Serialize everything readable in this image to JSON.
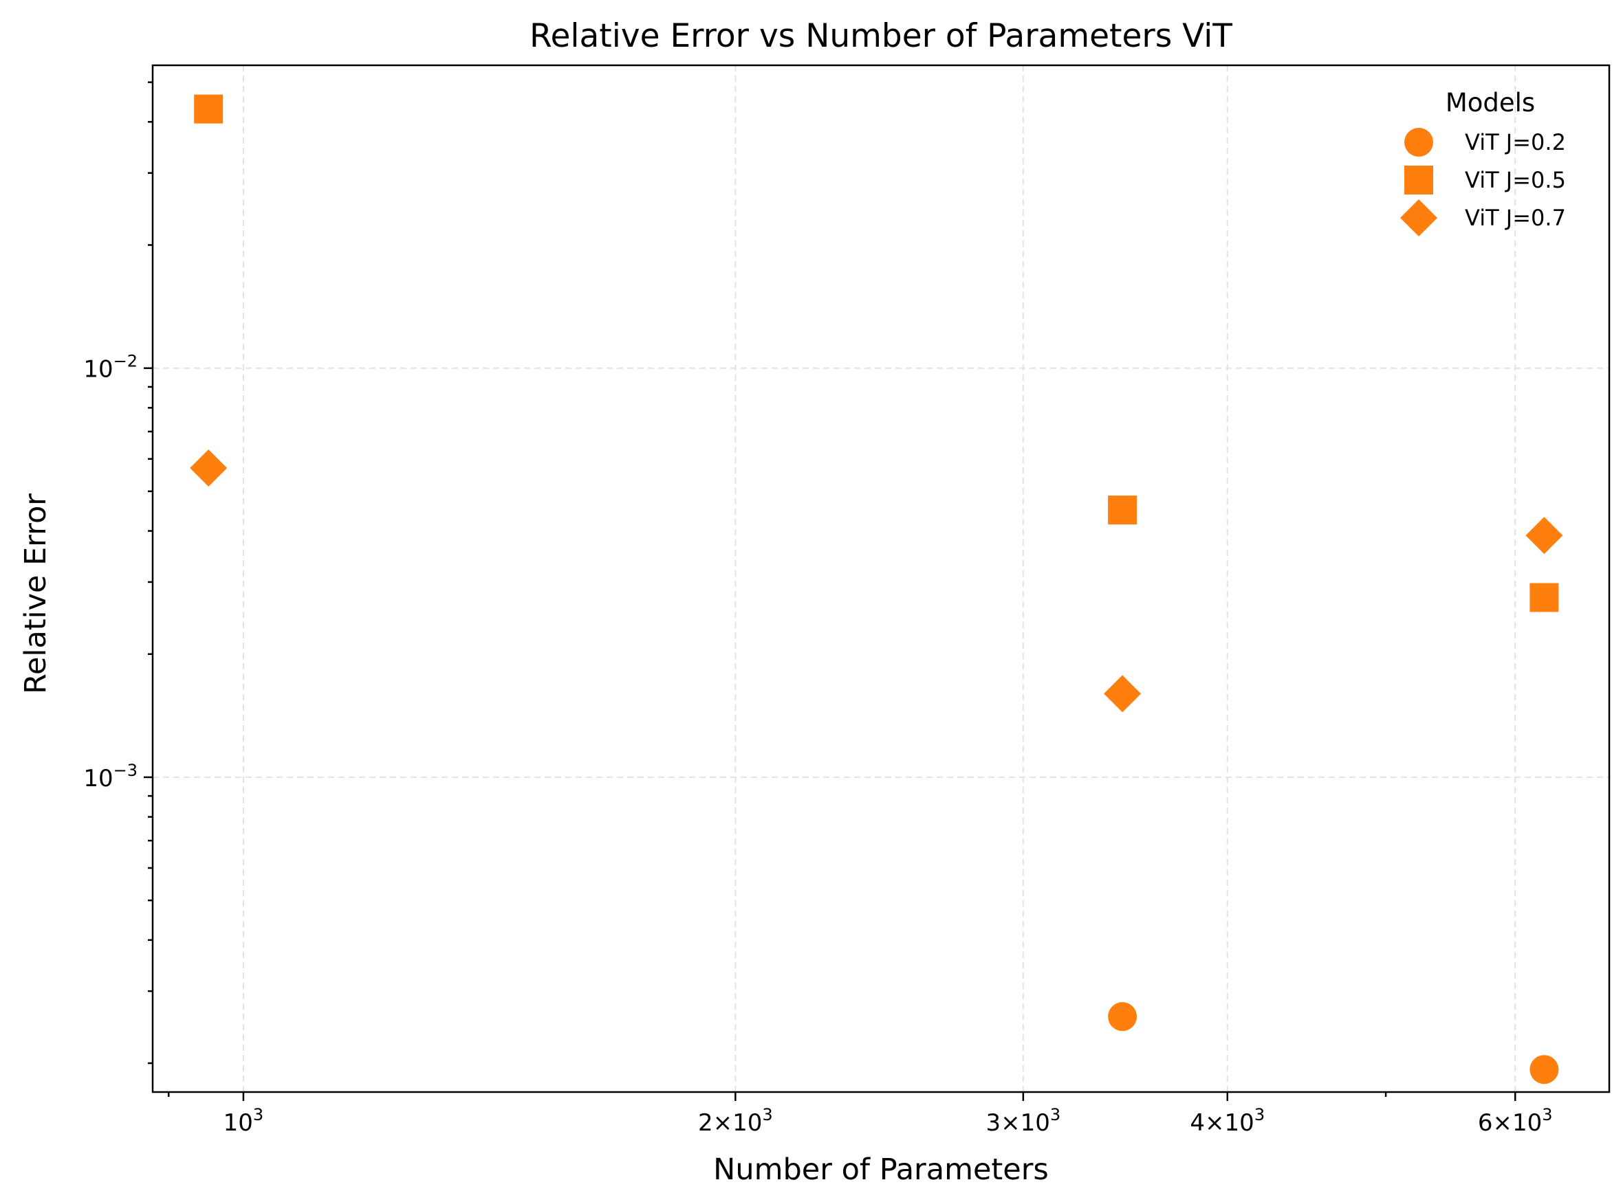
{
  "chart_data": {
    "type": "scatter",
    "title": "Relative Error vs Number of Parameters ViT",
    "xlabel": "Number of Parameters",
    "ylabel": "Relative Error",
    "xscale": "log",
    "yscale": "log",
    "xlim": [
      880,
      6850
    ],
    "ylim": [
      0.00017,
      0.055
    ],
    "grid": true,
    "legend": {
      "title": "Models",
      "position": "top-right"
    },
    "marker_color": "#ff7f0e",
    "x_ticks": [
      {
        "value": 1000,
        "mantissa": "",
        "exponent": "3"
      },
      {
        "value": 2000,
        "mantissa": "2",
        "exponent": "3"
      },
      {
        "value": 3000,
        "mantissa": "3",
        "exponent": "3"
      },
      {
        "value": 4000,
        "mantissa": "4",
        "exponent": "3"
      },
      {
        "value": 6000,
        "mantissa": "6",
        "exponent": "3"
      }
    ],
    "y_ticks": [
      {
        "value": 0.001,
        "exponent": "−3"
      },
      {
        "value": 0.01,
        "exponent": "−2"
      }
    ],
    "series": [
      {
        "name": "ViT J=0.2",
        "marker": "circle",
        "points": [
          {
            "x": 3450,
            "y": 0.00026
          },
          {
            "x": 6250,
            "y": 0.000193
          }
        ]
      },
      {
        "name": "ViT J=0.5",
        "marker": "square",
        "points": [
          {
            "x": 952,
            "y": 0.043
          },
          {
            "x": 3450,
            "y": 0.0045
          },
          {
            "x": 6250,
            "y": 0.00275
          }
        ]
      },
      {
        "name": "ViT J=0.7",
        "marker": "diamond",
        "points": [
          {
            "x": 952,
            "y": 0.0057
          },
          {
            "x": 3450,
            "y": 0.0016
          },
          {
            "x": 6250,
            "y": 0.0039
          }
        ]
      }
    ]
  }
}
